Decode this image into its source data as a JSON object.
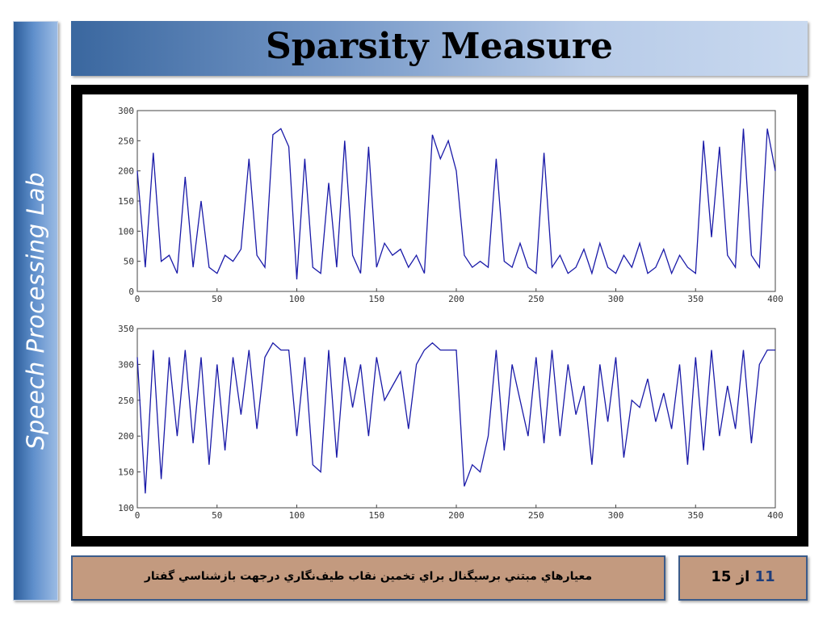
{
  "sidebar": {
    "label": "Speech Processing Lab"
  },
  "header": {
    "title": "Sparsity Measure"
  },
  "footer": {
    "text": "معيارهاي مبتني برسيگنال براي تخمين نقاب طيف‌نگاري درجهت بازشناسي گفتار",
    "page_current": "11",
    "page_sep": "از",
    "page_total": "15"
  },
  "colors": {
    "line": "#1a1aa8",
    "frame": "#000000",
    "header_start": "#3a679f",
    "footer_bg": "#c39a7f"
  },
  "chart_data": [
    {
      "type": "line",
      "xlim": [
        0,
        400
      ],
      "ylim": [
        0,
        300
      ],
      "xticks": [
        0,
        50,
        100,
        150,
        200,
        250,
        300,
        350,
        400
      ],
      "yticks": [
        0,
        50,
        100,
        150,
        200,
        250,
        300
      ],
      "grid": false,
      "x": [
        0,
        5,
        10,
        15,
        20,
        25,
        30,
        35,
        40,
        45,
        50,
        55,
        60,
        65,
        70,
        75,
        80,
        85,
        90,
        95,
        100,
        105,
        110,
        115,
        120,
        125,
        130,
        135,
        140,
        145,
        150,
        155,
        160,
        165,
        170,
        175,
        180,
        185,
        190,
        195,
        200,
        205,
        210,
        215,
        220,
        225,
        230,
        235,
        240,
        245,
        250,
        255,
        260,
        265,
        270,
        275,
        280,
        285,
        290,
        295,
        300,
        305,
        310,
        315,
        320,
        325,
        330,
        335,
        340,
        345,
        350,
        355,
        360,
        365,
        370,
        375,
        380,
        385,
        390,
        395,
        400
      ],
      "values": [
        200,
        40,
        230,
        50,
        60,
        30,
        190,
        40,
        150,
        40,
        30,
        60,
        50,
        70,
        220,
        60,
        40,
        260,
        270,
        240,
        20,
        220,
        40,
        30,
        180,
        40,
        250,
        60,
        30,
        240,
        40,
        80,
        60,
        70,
        40,
        60,
        30,
        260,
        220,
        250,
        200,
        60,
        40,
        50,
        40,
        220,
        50,
        40,
        80,
        40,
        30,
        230,
        40,
        60,
        30,
        40,
        70,
        30,
        80,
        40,
        30,
        60,
        40,
        80,
        30,
        40,
        70,
        30,
        60,
        40,
        30,
        250,
        90,
        240,
        60,
        40,
        270,
        60,
        40,
        270,
        200
      ],
      "series": [
        {
          "values": [
            200,
            40,
            230,
            50,
            60,
            30,
            190,
            40,
            150,
            40,
            30,
            60,
            50,
            70,
            220,
            60,
            40,
            260,
            270,
            240,
            20,
            220,
            40,
            30,
            180,
            40,
            250,
            60,
            30,
            240,
            40,
            80,
            60,
            70,
            40,
            60,
            30,
            260,
            220,
            250,
            200,
            60,
            40,
            50,
            40,
            220,
            50,
            40,
            80,
            40,
            30,
            230,
            40,
            60,
            30,
            40,
            70,
            30,
            80,
            40,
            30,
            60,
            40,
            80,
            30,
            40,
            70,
            30,
            60,
            40,
            30,
            250,
            90,
            240,
            60,
            40,
            270,
            60,
            40,
            270,
            200
          ]
        }
      ]
    },
    {
      "type": "line",
      "xlim": [
        0,
        400
      ],
      "ylim": [
        100,
        350
      ],
      "xticks": [
        0,
        50,
        100,
        150,
        200,
        250,
        300,
        350,
        400
      ],
      "yticks": [
        100,
        150,
        200,
        250,
        300,
        350
      ],
      "grid": false,
      "x": [
        0,
        5,
        10,
        15,
        20,
        25,
        30,
        35,
        40,
        45,
        50,
        55,
        60,
        65,
        70,
        75,
        80,
        85,
        90,
        95,
        100,
        105,
        110,
        115,
        120,
        125,
        130,
        135,
        140,
        145,
        150,
        155,
        160,
        165,
        170,
        175,
        180,
        185,
        190,
        195,
        200,
        205,
        210,
        215,
        220,
        225,
        230,
        235,
        240,
        245,
        250,
        255,
        260,
        265,
        270,
        275,
        280,
        285,
        290,
        295,
        300,
        305,
        310,
        315,
        320,
        325,
        330,
        335,
        340,
        345,
        350,
        355,
        360,
        365,
        370,
        375,
        380,
        385,
        390,
        395,
        400
      ],
      "values": [
        310,
        120,
        320,
        140,
        310,
        200,
        320,
        190,
        310,
        160,
        300,
        180,
        310,
        230,
        320,
        210,
        310,
        330,
        320,
        320,
        200,
        310,
        160,
        150,
        320,
        170,
        310,
        240,
        300,
        200,
        310,
        250,
        270,
        290,
        210,
        300,
        320,
        330,
        320,
        320,
        320,
        130,
        160,
        150,
        200,
        320,
        180,
        300,
        250,
        200,
        310,
        190,
        320,
        200,
        300,
        230,
        270,
        160,
        300,
        220,
        310,
        170,
        250,
        240,
        280,
        220,
        260,
        210,
        300,
        160,
        310,
        180,
        320,
        200,
        270,
        210,
        320,
        190,
        300,
        320,
        320
      ],
      "series": [
        {
          "values": [
            310,
            120,
            320,
            140,
            310,
            200,
            320,
            190,
            310,
            160,
            300,
            180,
            310,
            230,
            320,
            210,
            310,
            330,
            320,
            320,
            200,
            310,
            160,
            150,
            320,
            170,
            310,
            240,
            300,
            200,
            310,
            250,
            270,
            290,
            210,
            300,
            320,
            330,
            320,
            320,
            320,
            130,
            160,
            150,
            200,
            320,
            180,
            300,
            250,
            200,
            310,
            190,
            320,
            200,
            300,
            230,
            270,
            160,
            300,
            220,
            310,
            170,
            250,
            240,
            280,
            220,
            260,
            210,
            300,
            160,
            310,
            180,
            320,
            200,
            270,
            210,
            320,
            190,
            300,
            320,
            320
          ]
        }
      ]
    }
  ]
}
